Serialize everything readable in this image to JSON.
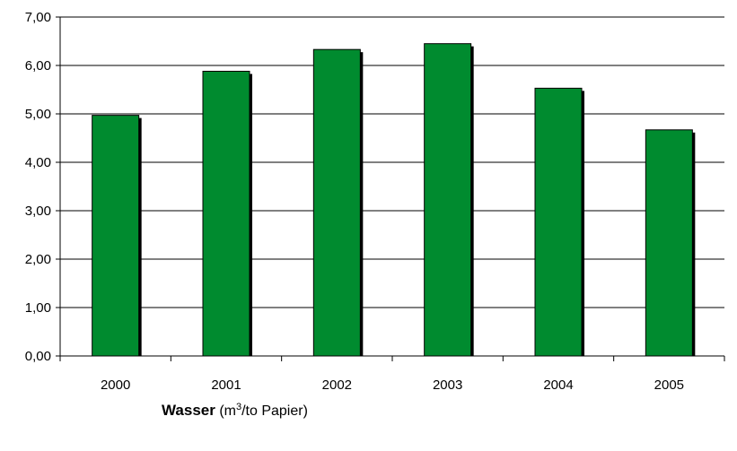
{
  "chart_data": {
    "type": "bar",
    "categories": [
      "2000",
      "2001",
      "2002",
      "2003",
      "2004",
      "2005"
    ],
    "values": [
      4.97,
      5.88,
      6.33,
      6.45,
      5.53,
      4.67
    ],
    "y_tick_labels": [
      "0,00",
      "1,00",
      "2,00",
      "3,00",
      "4,00",
      "5,00",
      "6,00",
      "7,00"
    ],
    "ylim": [
      0,
      7
    ],
    "grid": true,
    "legend": "none",
    "bar_color": "#008b2f",
    "caption": {
      "title": "Wasser",
      "unit_open": "(m",
      "unit_sup": "3",
      "unit_rest": "/to Papier)"
    }
  }
}
